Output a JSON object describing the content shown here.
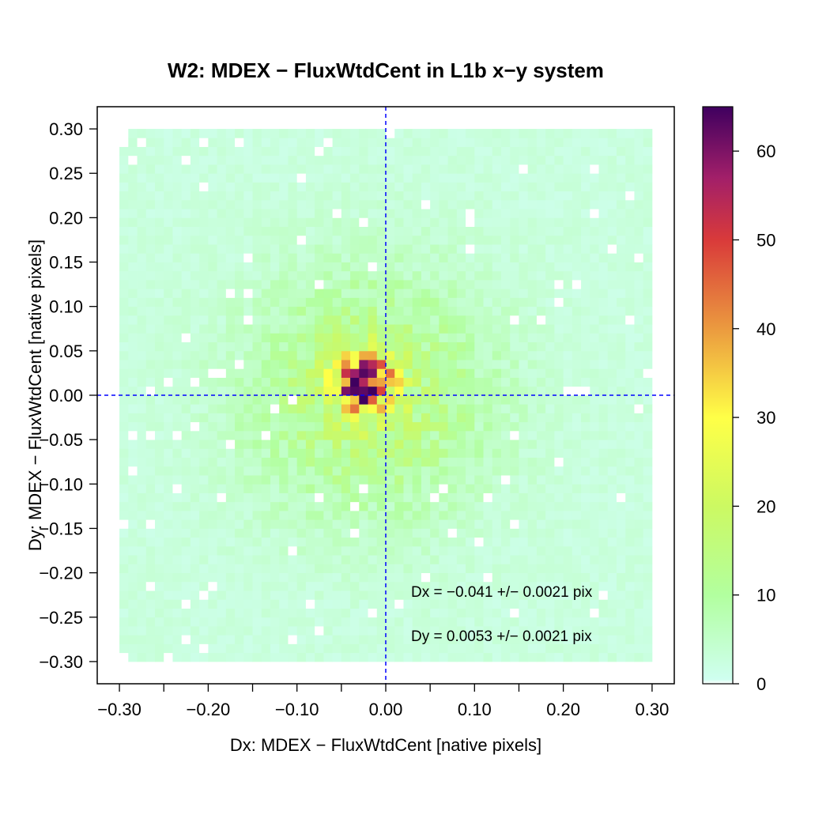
{
  "chart_data": {
    "type": "heatmap",
    "title": "W2: MDEX − FluxWtdCent in L1b x−y system",
    "xlabel": "Dx: MDEX − FluxWtdCent [native pixels]",
    "ylabel": "Dy: MDEX − FluxWtdCent [native pixels]",
    "xlim": [
      -0.325,
      0.325
    ],
    "ylim": [
      -0.325,
      0.325
    ],
    "x_ticks": [
      -0.3,
      -0.2,
      -0.1,
      0.0,
      0.1,
      0.2,
      0.3
    ],
    "x_tick_labels": [
      "−0.30",
      "−0.20",
      "−0.10",
      "0.00",
      "0.10",
      "0.20",
      "0.30"
    ],
    "x_minor_ticks": [
      -0.25,
      -0.15,
      -0.05,
      0.05,
      0.15,
      0.25
    ],
    "y_ticks": [
      0.3,
      0.25,
      0.2,
      0.15,
      0.1,
      0.05,
      0.0,
      -0.05,
      -0.1,
      -0.15,
      -0.2,
      -0.25,
      -0.3
    ],
    "y_tick_labels": [
      "0.30",
      "0.25",
      "0.20",
      "0.15",
      "0.10",
      "0.05",
      "0.00",
      "−0.05",
      "−0.10",
      "−0.15",
      "−0.20",
      "−0.25",
      "−0.30"
    ],
    "bin_range": [
      -0.3,
      0.3
    ],
    "bins_per_axis": 60,
    "peak": {
      "x": -0.025,
      "y": 0.015,
      "value": 64
    },
    "colorbar": {
      "range": [
        0,
        65
      ],
      "ticks": [
        0,
        10,
        20,
        30,
        40,
        50,
        60
      ],
      "tick_labels": [
        "0",
        "10",
        "20",
        "30",
        "40",
        "50",
        "60"
      ],
      "stops": [
        {
          "value": 0,
          "color": "#ffffff"
        },
        {
          "value": 0.5,
          "color": "#cffff0"
        },
        {
          "value": 10,
          "color": "#b2ff9f"
        },
        {
          "value": 20,
          "color": "#ccf962"
        },
        {
          "value": 30,
          "color": "#ffff47"
        },
        {
          "value": 40,
          "color": "#eb9a3f"
        },
        {
          "value": 50,
          "color": "#d93a3a"
        },
        {
          "value": 57,
          "color": "#a21f69"
        },
        {
          "value": 65,
          "color": "#3f005f"
        }
      ]
    },
    "reference_lines": {
      "x": 0.0,
      "y": 0.0,
      "color": "#0000ff",
      "style": "dashed"
    },
    "annotations": [
      {
        "text": "Dx = −0.041 +/− 0.0021 pix"
      },
      {
        "text": "Dy = 0.0053 +/− 0.0021 pix"
      }
    ]
  }
}
